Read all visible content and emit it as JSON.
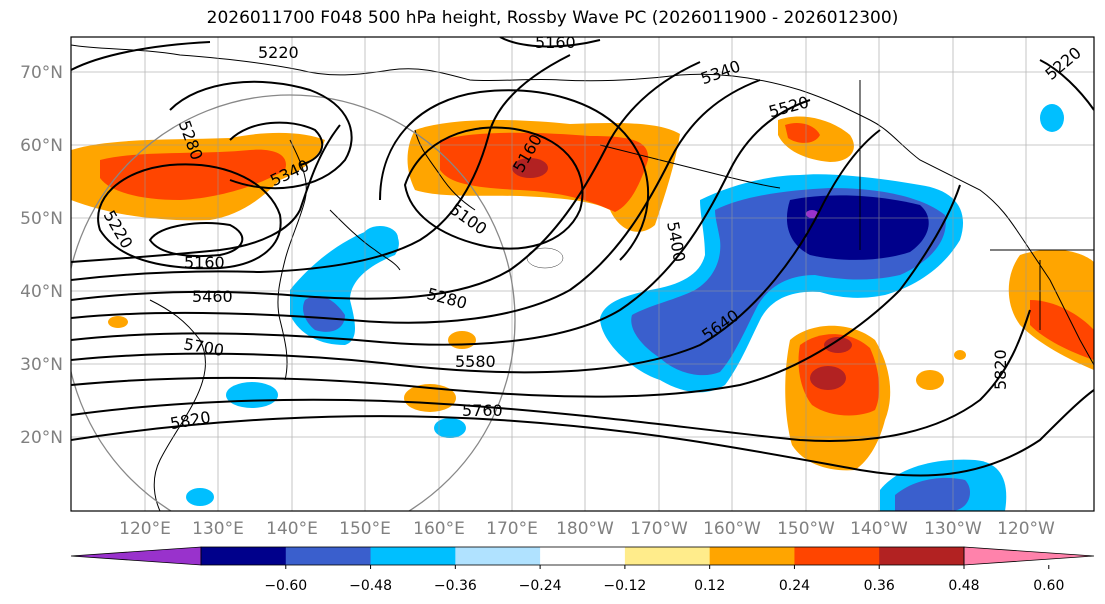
{
  "title": "2026011700 F048 500 hPa height, Rossby Wave PC (2026011900 - 2026012300)",
  "lat_labels": [
    "70°N",
    "60°N",
    "50°N",
    "40°N",
    "30°N",
    "20°N"
  ],
  "lon_labels": [
    "120°E",
    "130°E",
    "140°E",
    "150°E",
    "160°E",
    "170°E",
    "180°W",
    "170°W",
    "160°W",
    "150°W",
    "140°W",
    "130°W",
    "120°W"
  ],
  "contour_labels": [
    "5220",
    "5160",
    "5340",
    "5280",
    "5340",
    "5520",
    "5160",
    "5220",
    "5100",
    "5400",
    "5160",
    "5460",
    "5280",
    "5640",
    "5700",
    "5580",
    "5820",
    "5760",
    "5820",
    "5220"
  ],
  "colorbar": {
    "ticks": [
      "−0.60",
      "−0.48",
      "−0.36",
      "−0.24",
      "−0.12",
      "0.12",
      "0.24",
      "0.36",
      "0.48",
      "0.60"
    ],
    "colors": [
      "#9932CC",
      "#00008B",
      "#3A5FCD",
      "#00BFFF",
      "#B0E2FF",
      "#FFFFFF",
      "#FFEC8B",
      "#FFA500",
      "#FF4500",
      "#B22222",
      "#FF82AB"
    ]
  },
  "palette": {
    "neg_strong": "#00008B",
    "neg_mid": "#3A5FCD",
    "neg_low": "#00BFFF",
    "pos_low": "#FFA500",
    "pos_mid": "#FF4500",
    "pos_strong": "#B22222",
    "purple": "#9932CC"
  }
}
